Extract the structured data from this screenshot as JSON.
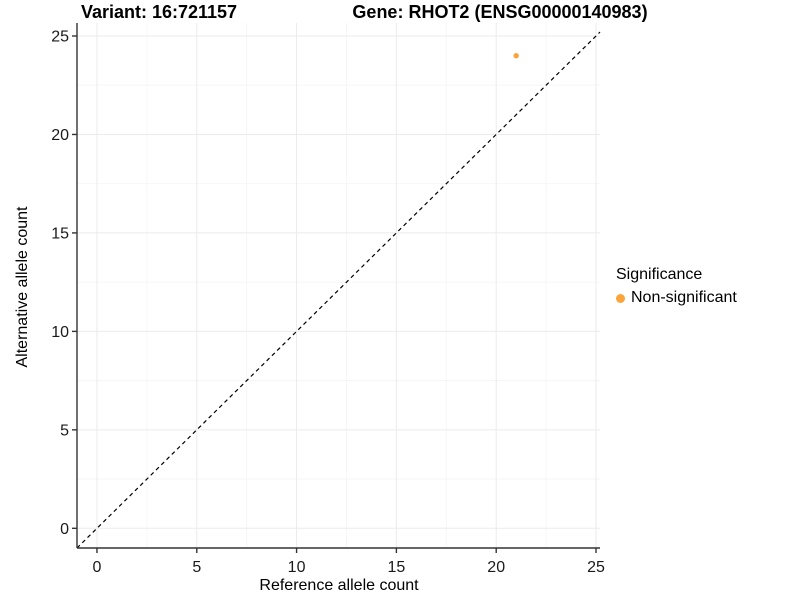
{
  "chart_data": {
    "type": "scatter",
    "title_left": "Variant: 16:721157",
    "title_right": "Gene: RHOT2 (ENSG00000140983)",
    "xlabel": "Reference allele count",
    "ylabel": "Alternative allele count",
    "xlim": [
      -1.0,
      25.2
    ],
    "ylim": [
      -1.0,
      25.66
    ],
    "x_ticks": [
      0,
      5,
      10,
      15,
      20,
      25
    ],
    "y_ticks": [
      0,
      5,
      10,
      15,
      20,
      25
    ],
    "x_minor_ticks": [
      2.5,
      7.5,
      12.5,
      17.5,
      22.5
    ],
    "y_minor_ticks": [
      2.5,
      7.5,
      12.5,
      17.5,
      22.5
    ],
    "grid": true,
    "reference_line": {
      "slope": 1,
      "intercept": 0,
      "style": "dashed",
      "color": "#000000"
    },
    "series": [
      {
        "name": "Non-significant",
        "color": "#FAA43A",
        "points": [
          {
            "x": 21,
            "y": 24
          }
        ]
      }
    ],
    "legend": {
      "title": "Significance",
      "position": "right",
      "items": [
        {
          "label": "Non-significant",
          "color": "#FAA43A"
        }
      ]
    }
  },
  "colors": {
    "background": "#FFFFFF",
    "grid_major": "#EBEBEB",
    "grid_minor": "#F5F5F5",
    "axis_line": "#333333",
    "tick_mark": "#333333",
    "tick_label": "#1A1A1A",
    "title_text": "#000000",
    "identity_line": "#000000"
  }
}
